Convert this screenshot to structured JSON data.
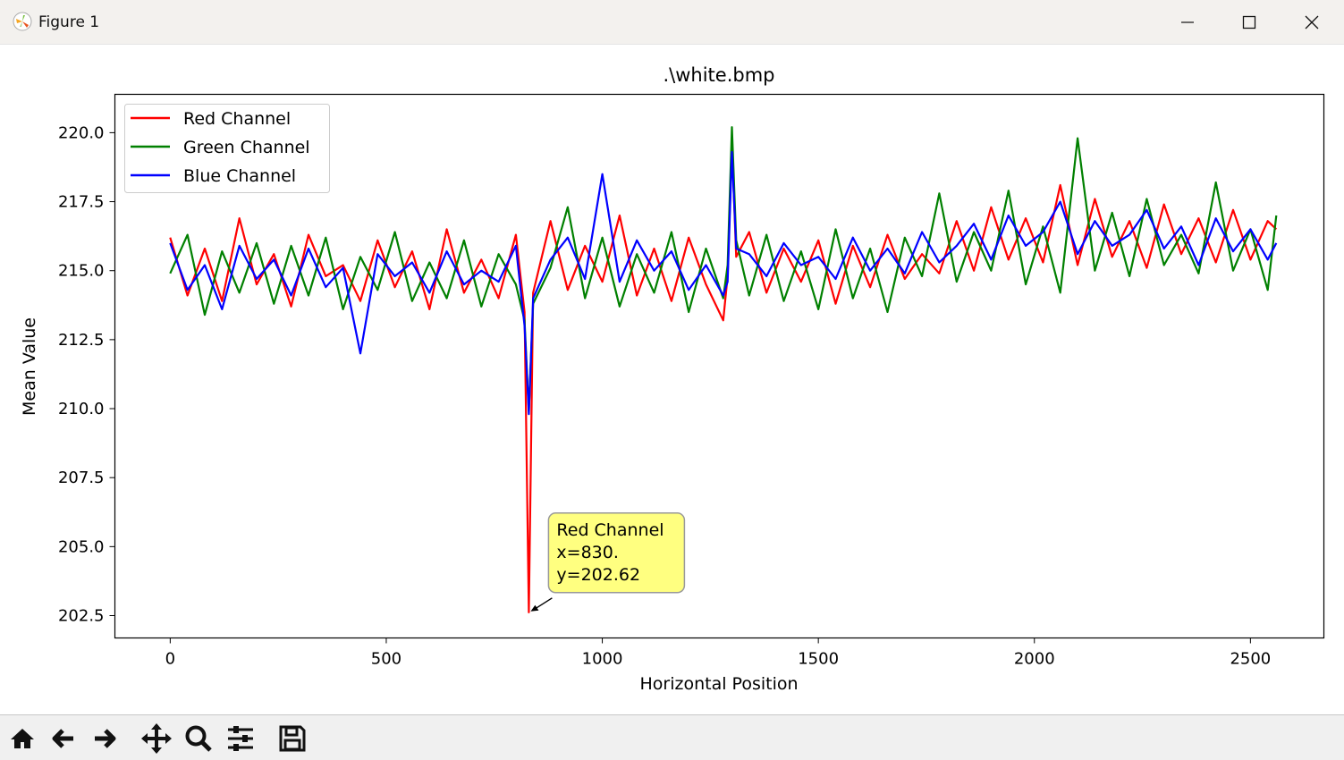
{
  "window": {
    "title": "Figure 1"
  },
  "toolbar": {
    "icons": [
      "home-icon",
      "back-icon",
      "forward-icon",
      "pan-icon",
      "zoom-icon",
      "configure-subplots-icon",
      "save-icon"
    ]
  },
  "colors": {
    "red": "#ff0000",
    "green": "#008000",
    "blue": "#0000ff",
    "annotation_bg": "#ffff80"
  },
  "chart_data": {
    "type": "line",
    "title": ".\\white.bmp",
    "xlabel": "Horizontal Position",
    "ylabel": "Mean Value",
    "xlim": [
      -128,
      2670
    ],
    "ylim": [
      201.69,
      221.39
    ],
    "xticks": [
      0,
      500,
      1000,
      1500,
      2000,
      2500
    ],
    "xtick_labels": [
      "0",
      "500",
      "1000",
      "1500",
      "2000",
      "2500"
    ],
    "yticks": [
      202.5,
      205.0,
      207.5,
      210.0,
      212.5,
      215.0,
      217.5,
      220.0
    ],
    "ytick_labels": [
      "202.5",
      "205.0",
      "207.5",
      "210.0",
      "212.5",
      "215.0",
      "217.5",
      "220.0"
    ],
    "grid": false,
    "legend": {
      "placement": "top-left",
      "entries": [
        "Red Channel",
        "Green Channel",
        "Blue Channel"
      ]
    },
    "x": [
      0,
      40,
      80,
      120,
      160,
      200,
      240,
      280,
      320,
      360,
      400,
      440,
      480,
      520,
      560,
      600,
      640,
      680,
      720,
      760,
      800,
      820,
      830,
      840,
      880,
      920,
      960,
      1000,
      1040,
      1080,
      1120,
      1160,
      1200,
      1240,
      1280,
      1290,
      1300,
      1310,
      1340,
      1380,
      1420,
      1460,
      1500,
      1540,
      1580,
      1620,
      1660,
      1700,
      1740,
      1780,
      1820,
      1860,
      1900,
      1940,
      1980,
      2020,
      2060,
      2100,
      2140,
      2180,
      2220,
      2260,
      2300,
      2340,
      2380,
      2420,
      2460,
      2500,
      2540,
      2560
    ],
    "series": [
      {
        "name": "Red Channel",
        "color": "#ff0000",
        "values": [
          216.2,
          214.1,
          215.8,
          213.9,
          216.9,
          214.5,
          215.6,
          213.7,
          216.3,
          214.8,
          215.2,
          213.9,
          216.1,
          214.4,
          215.7,
          213.6,
          216.5,
          214.2,
          215.4,
          214.0,
          216.3,
          213.5,
          202.62,
          214.2,
          216.8,
          214.3,
          215.9,
          214.6,
          217.0,
          214.1,
          215.8,
          213.9,
          216.2,
          214.5,
          213.2,
          214.8,
          219.6,
          215.5,
          216.4,
          214.2,
          215.8,
          214.6,
          216.1,
          213.8,
          215.9,
          214.4,
          216.3,
          214.7,
          215.6,
          214.9,
          216.8,
          215.0,
          217.3,
          215.4,
          216.9,
          215.3,
          218.1,
          215.2,
          217.6,
          215.5,
          216.8,
          215.1,
          217.4,
          215.6,
          216.9,
          215.3,
          217.2,
          215.4,
          216.8,
          216.5
        ]
      },
      {
        "name": "Green Channel",
        "color": "#008000",
        "values": [
          214.9,
          216.3,
          213.4,
          215.7,
          214.2,
          216.0,
          213.8,
          215.9,
          214.1,
          216.2,
          213.6,
          215.5,
          214.3,
          216.4,
          213.9,
          215.3,
          214.0,
          216.1,
          213.7,
          215.6,
          214.5,
          213.2,
          209.9,
          213.8,
          215.1,
          217.3,
          214.0,
          216.2,
          213.7,
          215.6,
          214.2,
          216.4,
          213.5,
          215.8,
          214.0,
          215.2,
          220.2,
          216.1,
          214.1,
          216.3,
          213.9,
          215.7,
          213.6,
          216.5,
          214.0,
          215.8,
          213.5,
          216.2,
          214.8,
          217.8,
          214.6,
          216.4,
          215.0,
          217.9,
          214.5,
          216.6,
          214.2,
          219.8,
          215.0,
          217.1,
          214.8,
          217.6,
          215.2,
          216.3,
          214.9,
          218.2,
          215.0,
          216.5,
          214.3,
          217.0
        ]
      },
      {
        "name": "Blue Channel",
        "color": "#0000ff",
        "values": [
          216.0,
          214.3,
          215.2,
          213.6,
          215.9,
          214.7,
          215.4,
          214.1,
          215.8,
          214.4,
          215.1,
          212.0,
          215.6,
          214.8,
          215.3,
          214.2,
          215.7,
          214.5,
          215.0,
          214.6,
          215.9,
          213.0,
          209.8,
          214.0,
          215.4,
          216.2,
          214.7,
          218.5,
          214.6,
          216.1,
          215.0,
          215.7,
          214.3,
          215.2,
          214.1,
          214.6,
          219.3,
          215.8,
          215.6,
          214.8,
          216.0,
          215.2,
          215.5,
          214.7,
          216.2,
          215.0,
          215.8,
          214.9,
          216.4,
          215.3,
          215.9,
          216.7,
          215.4,
          217.0,
          215.9,
          216.4,
          217.5,
          215.6,
          216.8,
          215.9,
          216.3,
          217.2,
          215.8,
          216.6,
          215.2,
          216.9,
          215.7,
          216.5,
          215.4,
          216.0
        ]
      }
    ],
    "annotation": {
      "series": "Red Channel",
      "x": 830,
      "y": 202.62,
      "lines": [
        "Red Channel",
        "x=830.",
        "y=202.62"
      ]
    }
  }
}
